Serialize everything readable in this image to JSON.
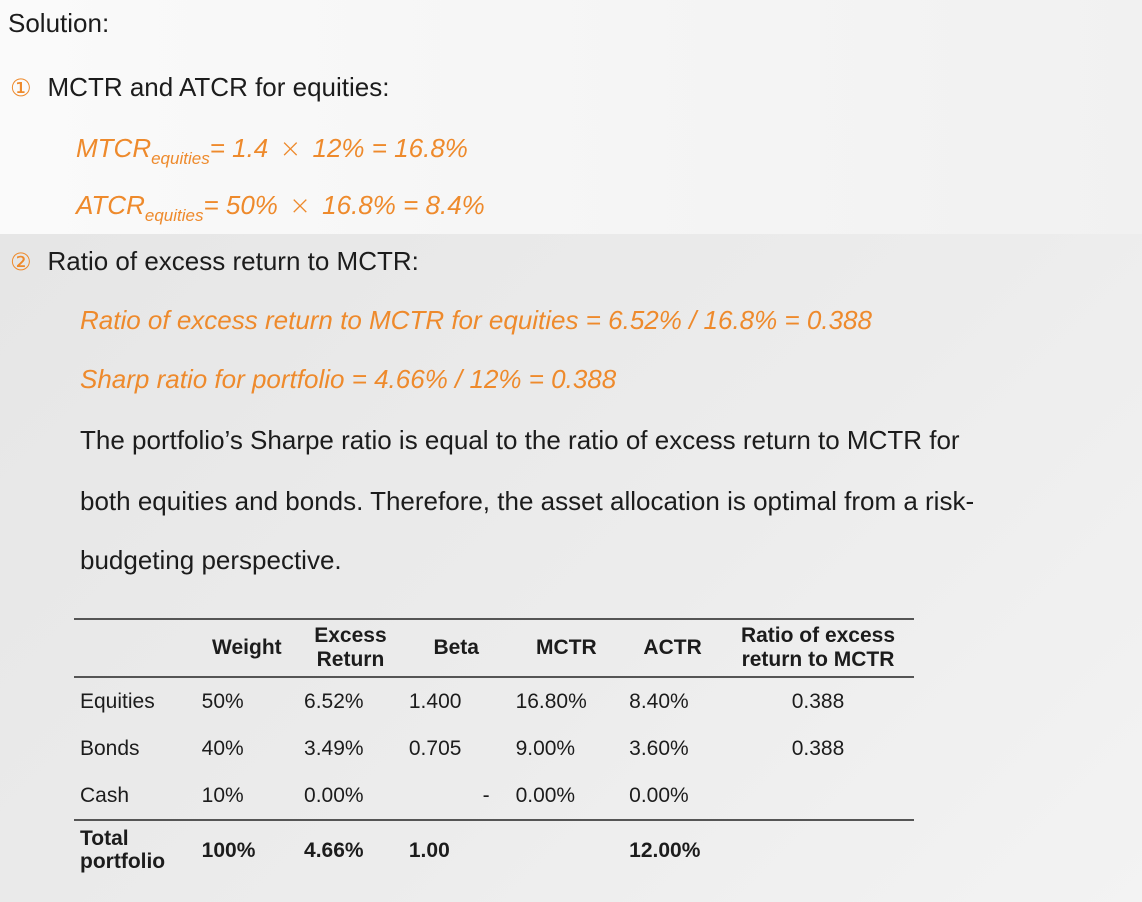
{
  "heading": "Solution:",
  "step1": {
    "marker": "①",
    "title": "MCTR and ATCR for equities:",
    "mtcr": {
      "lhs": "MTCR",
      "sub": "equities",
      "eq1": "= 1.4 ",
      "op": "×",
      "eq2": " 12% = 16.8%"
    },
    "atcr": {
      "lhs": "ATCR",
      "sub": "equities",
      "eq1": "= 50% ",
      "op": "×",
      "eq2": " 16.8% = 8.4%"
    }
  },
  "step2": {
    "marker": "②",
    "title": "Ratio of excess return to MCTR:",
    "formula1": "Ratio of excess return to MCTR for equities = 6.52% / 16.8% = 0.388",
    "formula2": "Sharp ratio for portfolio =  4.66% /  12% = 0.388",
    "para_line1": "The portfolio’s Sharpe ratio is equal to the ratio of excess return to MCTR for",
    "para_line2": "both equities and bonds. Therefore, the asset allocation is optimal from a risk-",
    "para_line3": "budgeting perspective."
  },
  "table": {
    "headers": [
      "",
      "Weight",
      "Excess Return",
      "Beta",
      "MCTR",
      "ACTR",
      "Ratio of excess return to MCTR"
    ],
    "rows": [
      [
        "Equities",
        "50%",
        "6.52%",
        "1.400",
        "16.80%",
        "8.40%",
        "0.388"
      ],
      [
        "Bonds",
        "40%",
        "3.49%",
        "0.705",
        "9.00%",
        "3.60%",
        "0.388"
      ],
      [
        "Cash",
        "10%",
        "0.00%",
        "-",
        "0.00%",
        "0.00%",
        ""
      ]
    ],
    "total": [
      "Total portfolio",
      "100%",
      "4.66%",
      "1.00",
      "",
      "12.00%",
      ""
    ]
  },
  "colors": {
    "accent": "#ee8a2c",
    "text": "#1c1c1c"
  }
}
